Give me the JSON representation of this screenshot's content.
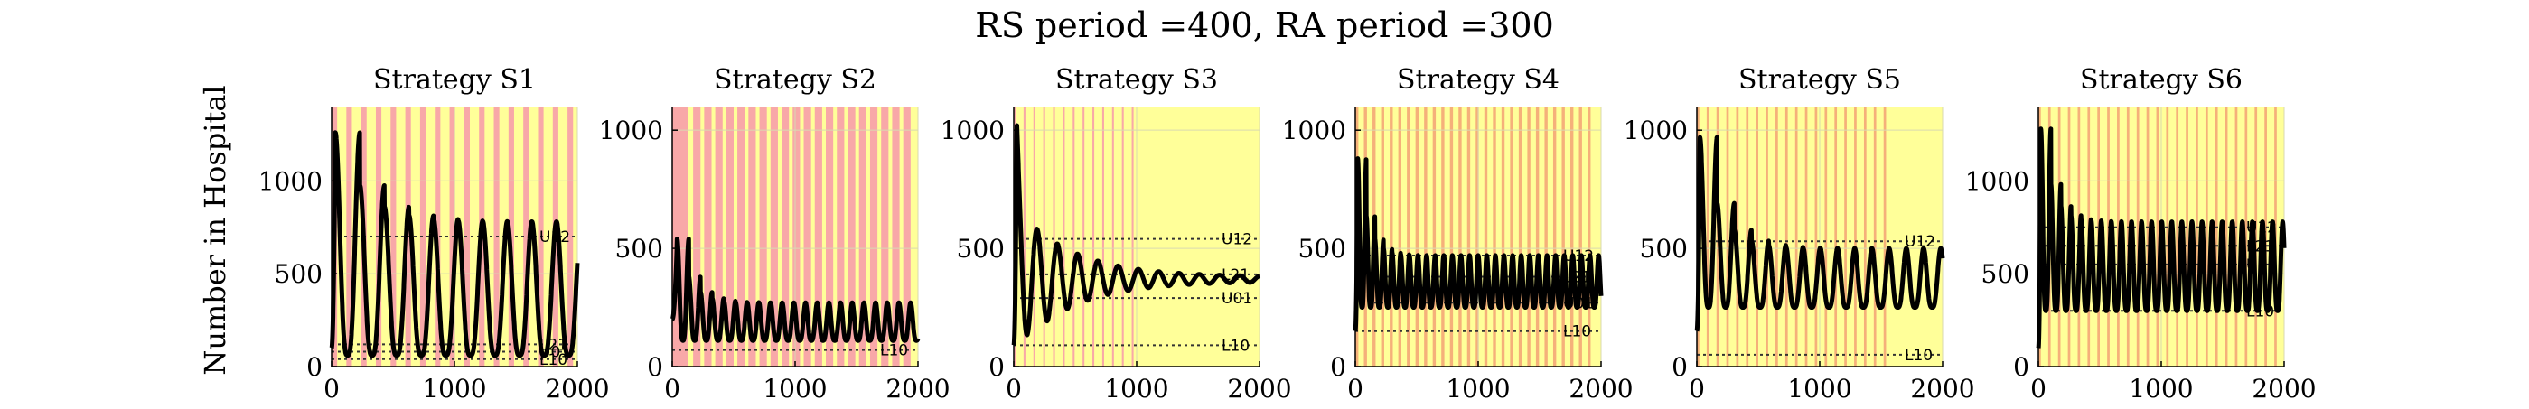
{
  "figure": {
    "suptitle": "RS period =400, RA period =300",
    "ylabel": "Number in Hospital"
  },
  "colors": {
    "background": "#ffff99",
    "band": "#f8a8a8",
    "band_orange": "#f5b07a",
    "curve": "#000000",
    "threshold_line": "#333333",
    "grid": "#d9d9b0"
  },
  "chart_data": [
    {
      "type": "line",
      "title": "Strategy S1",
      "xlabel": "",
      "ylabel": "Number in Hospital",
      "xlim": [
        0,
        2000
      ],
      "ylim": [
        0,
        1400
      ],
      "xticks": [
        0,
        1000,
        2000
      ],
      "xtick_labels": [
        "0",
        "1000",
        "2000"
      ],
      "yticks": [
        0,
        500,
        1000
      ],
      "ytick_labels": [
        "0",
        "500",
        "1000"
      ],
      "grid": true,
      "band_color": "band",
      "bands": [
        [
          0,
          45
        ],
        [
          120,
          165
        ],
        [
          240,
          285
        ],
        [
          360,
          405
        ],
        [
          480,
          525
        ],
        [
          600,
          645
        ],
        [
          720,
          765
        ],
        [
          840,
          885
        ],
        [
          960,
          1005
        ],
        [
          1080,
          1125
        ],
        [
          1200,
          1245
        ],
        [
          1320,
          1365
        ],
        [
          1440,
          1485
        ],
        [
          1560,
          1605
        ],
        [
          1680,
          1725
        ],
        [
          1800,
          1845
        ],
        [
          1920,
          1965
        ]
      ],
      "thresholds": [
        {
          "label": "U12",
          "value": 700
        },
        {
          "label": "L21",
          "value": 120
        },
        {
          "label": "U01",
          "value": 80
        },
        {
          "label": "L10",
          "value": 40
        }
      ],
      "series": [
        {
          "kind": "damped_peaks",
          "start": 100,
          "first_peak": 1260,
          "peak_decay_to": 780,
          "trough": 60,
          "period": 200,
          "phase": 30,
          "damping": 0.0
        }
      ]
    },
    {
      "type": "line",
      "title": "Strategy S2",
      "xlabel": "",
      "ylabel": "",
      "xlim": [
        0,
        2000
      ],
      "ylim": [
        0,
        1100
      ],
      "xticks": [
        0,
        1000,
        2000
      ],
      "xtick_labels": [
        "0",
        "1000",
        "2000"
      ],
      "yticks": [
        0,
        500,
        1000
      ],
      "ytick_labels": [
        "0",
        "500",
        "1000"
      ],
      "grid": true,
      "band_color": "band",
      "bands": [
        [
          0,
          130
        ],
        [
          170,
          230
        ],
        [
          260,
          320
        ],
        [
          350,
          410
        ],
        [
          440,
          500
        ],
        [
          530,
          590
        ],
        [
          620,
          680
        ],
        [
          710,
          770
        ],
        [
          800,
          860
        ],
        [
          890,
          950
        ],
        [
          980,
          1040
        ],
        [
          1070,
          1130
        ],
        [
          1160,
          1220
        ],
        [
          1250,
          1310
        ],
        [
          1340,
          1400
        ],
        [
          1430,
          1490
        ],
        [
          1520,
          1580
        ],
        [
          1610,
          1670
        ],
        [
          1700,
          1760
        ],
        [
          1790,
          1850
        ],
        [
          1880,
          1940
        ]
      ],
      "thresholds": [
        {
          "label": "L10",
          "value": 70
        }
      ],
      "series": [
        {
          "kind": "damped_peaks",
          "start": 200,
          "first_peak": 540,
          "peak_decay_to": 270,
          "trough": 110,
          "period": 95,
          "phase": 40,
          "damping": 0.0
        }
      ]
    },
    {
      "type": "line",
      "title": "Strategy S3",
      "xlabel": "",
      "ylabel": "",
      "xlim": [
        0,
        2000
      ],
      "ylim": [
        0,
        1100
      ],
      "xticks": [
        0,
        1000,
        2000
      ],
      "xtick_labels": [
        "0",
        "1000",
        "2000"
      ],
      "yticks": [
        0,
        500,
        1000
      ],
      "ytick_labels": [
        "0",
        "500",
        "1000"
      ],
      "grid": true,
      "band_color": "band",
      "bands": [
        [
          0,
          15
        ],
        [
          80,
          95
        ],
        [
          160,
          175
        ],
        [
          240,
          255
        ],
        [
          320,
          335
        ],
        [
          400,
          415
        ],
        [
          480,
          495
        ],
        [
          560,
          575
        ],
        [
          640,
          655
        ],
        [
          720,
          735
        ],
        [
          800,
          815
        ],
        [
          880,
          895
        ],
        [
          960,
          975
        ]
      ],
      "thresholds": [
        {
          "label": "U12",
          "value": 540
        },
        {
          "label": "L21",
          "value": 390
        },
        {
          "label": "U01",
          "value": 290
        },
        {
          "label": "L10",
          "value": 90
        }
      ],
      "series": [
        {
          "kind": "damped_osc",
          "start": 90,
          "first_peak": 1030,
          "center": 370,
          "amp_start": 300,
          "amp_end": 10,
          "period": 165,
          "phase": 25
        }
      ]
    },
    {
      "type": "line",
      "title": "Strategy S4",
      "xlabel": "",
      "ylabel": "",
      "xlim": [
        0,
        2000
      ],
      "ylim": [
        0,
        1100
      ],
      "xticks": [
        0,
        1000,
        2000
      ],
      "xtick_labels": [
        "0",
        "1000",
        "2000"
      ],
      "yticks": [
        0,
        500,
        1000
      ],
      "ytick_labels": [
        "0",
        "500",
        "1000"
      ],
      "grid": true,
      "band_color": "band_orange",
      "bands": [
        [
          0,
          25
        ],
        [
          70,
          95
        ],
        [
          140,
          165
        ],
        [
          210,
          235
        ],
        [
          280,
          305
        ],
        [
          350,
          375
        ],
        [
          420,
          445
        ],
        [
          490,
          515
        ],
        [
          560,
          585
        ],
        [
          630,
          655
        ],
        [
          700,
          725
        ],
        [
          770,
          795
        ],
        [
          840,
          865
        ],
        [
          910,
          935
        ],
        [
          980,
          1005
        ],
        [
          1050,
          1075
        ],
        [
          1120,
          1145
        ],
        [
          1190,
          1215
        ],
        [
          1260,
          1285
        ],
        [
          1330,
          1355
        ],
        [
          1400,
          1425
        ],
        [
          1470,
          1495
        ],
        [
          1540,
          1565
        ],
        [
          1610,
          1635
        ],
        [
          1680,
          1705
        ],
        [
          1750,
          1775
        ],
        [
          1820,
          1845
        ],
        [
          1890,
          1915
        ]
      ],
      "thresholds": [
        {
          "label": "U12",
          "value": 470
        },
        {
          "label": "L21",
          "value": 380
        },
        {
          "label": "U01",
          "value": 270
        },
        {
          "label": "L10",
          "value": 150
        }
      ],
      "series": [
        {
          "kind": "damped_peaks",
          "start": 150,
          "first_peak": 880,
          "peak_decay_to": 470,
          "trough": 250,
          "period": 70,
          "phase": 20,
          "damping": 0.0
        }
      ]
    },
    {
      "type": "line",
      "title": "Strategy S5",
      "xlabel": "",
      "ylabel": "",
      "xlim": [
        0,
        2000
      ],
      "ylim": [
        0,
        1100
      ],
      "xticks": [
        0,
        1000,
        2000
      ],
      "xtick_labels": [
        "0",
        "1000",
        "2000"
      ],
      "yticks": [
        0,
        500,
        1000
      ],
      "ytick_labels": [
        "0",
        "500",
        "1000"
      ],
      "grid": true,
      "band_color": "band_orange",
      "bands": [
        [
          0,
          20
        ],
        [
          80,
          100
        ],
        [
          160,
          180
        ],
        [
          240,
          260
        ],
        [
          320,
          340
        ],
        [
          400,
          420
        ],
        [
          480,
          500
        ],
        [
          560,
          580
        ],
        [
          640,
          660
        ],
        [
          720,
          740
        ],
        [
          800,
          820
        ],
        [
          880,
          900
        ],
        [
          960,
          980
        ],
        [
          1040,
          1060
        ],
        [
          1120,
          1140
        ],
        [
          1200,
          1220
        ],
        [
          1280,
          1300
        ],
        [
          1360,
          1380
        ],
        [
          1440,
          1460
        ],
        [
          1520,
          1540
        ]
      ],
      "thresholds": [
        {
          "label": "U12",
          "value": 530
        },
        {
          "label": "L10",
          "value": 50
        }
      ],
      "series": [
        {
          "kind": "damped_peaks",
          "start": 150,
          "first_peak": 970,
          "peak_decay_to": 500,
          "trough": 250,
          "period": 140,
          "phase": 25,
          "damping": 0.0
        }
      ]
    },
    {
      "type": "line",
      "title": "Strategy S6",
      "xlabel": "",
      "ylabel": "",
      "xlim": [
        0,
        2000
      ],
      "ylim": [
        0,
        1400
      ],
      "xticks": [
        0,
        1000,
        2000
      ],
      "xtick_labels": [
        "0",
        "1000",
        "2000"
      ],
      "yticks": [
        0,
        500,
        1000
      ],
      "ytick_labels": [
        "0",
        "500",
        "1000"
      ],
      "grid": true,
      "band_color": "band_orange",
      "bands": [
        [
          0,
          20
        ],
        [
          80,
          100
        ],
        [
          160,
          180
        ],
        [
          240,
          260
        ],
        [
          320,
          340
        ],
        [
          400,
          420
        ],
        [
          480,
          500
        ],
        [
          560,
          580
        ],
        [
          640,
          660
        ],
        [
          720,
          740
        ],
        [
          800,
          820
        ],
        [
          880,
          900
        ],
        [
          960,
          980
        ],
        [
          1040,
          1060
        ],
        [
          1120,
          1140
        ],
        [
          1200,
          1220
        ],
        [
          1280,
          1300
        ],
        [
          1360,
          1380
        ],
        [
          1440,
          1460
        ],
        [
          1520,
          1540
        ],
        [
          1600,
          1620
        ],
        [
          1680,
          1700
        ],
        [
          1760,
          1780
        ],
        [
          1840,
          1860
        ],
        [
          1920,
          1940
        ]
      ],
      "thresholds": [
        {
          "label": "U12",
          "value": 750
        },
        {
          "label": "L21",
          "value": 650
        },
        {
          "label": "U01",
          "value": 550
        },
        {
          "label": "L10",
          "value": 300
        }
      ],
      "series": [
        {
          "kind": "damped_peaks",
          "start": 100,
          "first_peak": 1280,
          "peak_decay_to": 780,
          "trough": 300,
          "period": 82,
          "phase": 20,
          "damping": 0.0
        }
      ]
    }
  ]
}
